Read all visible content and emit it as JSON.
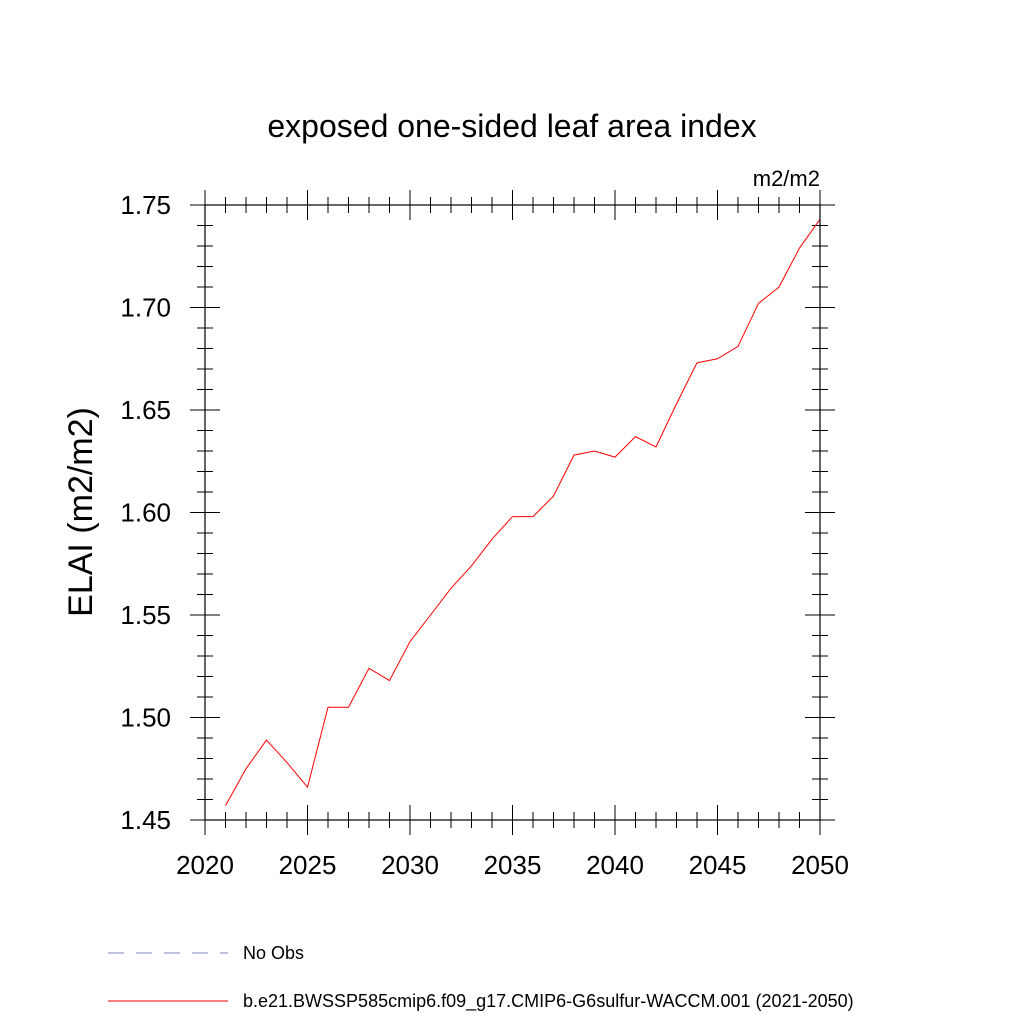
{
  "chart_data": {
    "type": "line",
    "title": "exposed one-sided leaf area index",
    "units_label": "m2/m2",
    "ylabel": "ELAI  (m2/m2)",
    "xlabel": "",
    "xlim": [
      2020,
      2050
    ],
    "ylim": [
      1.45,
      1.75
    ],
    "x_ticks": [
      2020,
      2025,
      2030,
      2035,
      2040,
      2045,
      2050
    ],
    "x_tick_labels": [
      "2020",
      "2025",
      "2030",
      "2035",
      "2040",
      "2045",
      "2050"
    ],
    "y_ticks": [
      1.45,
      1.5,
      1.55,
      1.6,
      1.65,
      1.7,
      1.75
    ],
    "y_tick_labels": [
      "1.45",
      "1.50",
      "1.55",
      "1.60",
      "1.65",
      "1.70",
      "1.75"
    ],
    "grid": false,
    "legend_position": "bottom-left",
    "series": [
      {
        "name": "b.e21.BWSSP585cmip6.f09_g17.CMIP6-G6sulfur-WACCM.001 (2021-2050)",
        "color": "#ff0000",
        "style": "solid",
        "x": [
          2021,
          2022,
          2023,
          2024,
          2025,
          2026,
          2027,
          2028,
          2029,
          2030,
          2031,
          2032,
          2033,
          2034,
          2035,
          2036,
          2037,
          2038,
          2039,
          2040,
          2041,
          2042,
          2043,
          2044,
          2045,
          2046,
          2047,
          2048,
          2049,
          2050
        ],
        "values": [
          1.457,
          1.475,
          1.489,
          1.478,
          1.466,
          1.505,
          1.505,
          1.524,
          1.518,
          1.537,
          1.55,
          1.563,
          1.574,
          1.587,
          1.598,
          1.598,
          1.608,
          1.628,
          1.63,
          1.627,
          1.637,
          1.632,
          1.653,
          1.673,
          1.675,
          1.681,
          1.702,
          1.71,
          1.729,
          1.743
        ]
      }
    ],
    "legend": [
      {
        "label": "No Obs",
        "color": "#8080c0",
        "style": "dashed"
      },
      {
        "label": "b.e21.BWSSP585cmip6.f09_g17.CMIP6-G6sulfur-WACCM.001 (2021-2050)",
        "color": "#ff0000",
        "style": "solid"
      }
    ]
  }
}
